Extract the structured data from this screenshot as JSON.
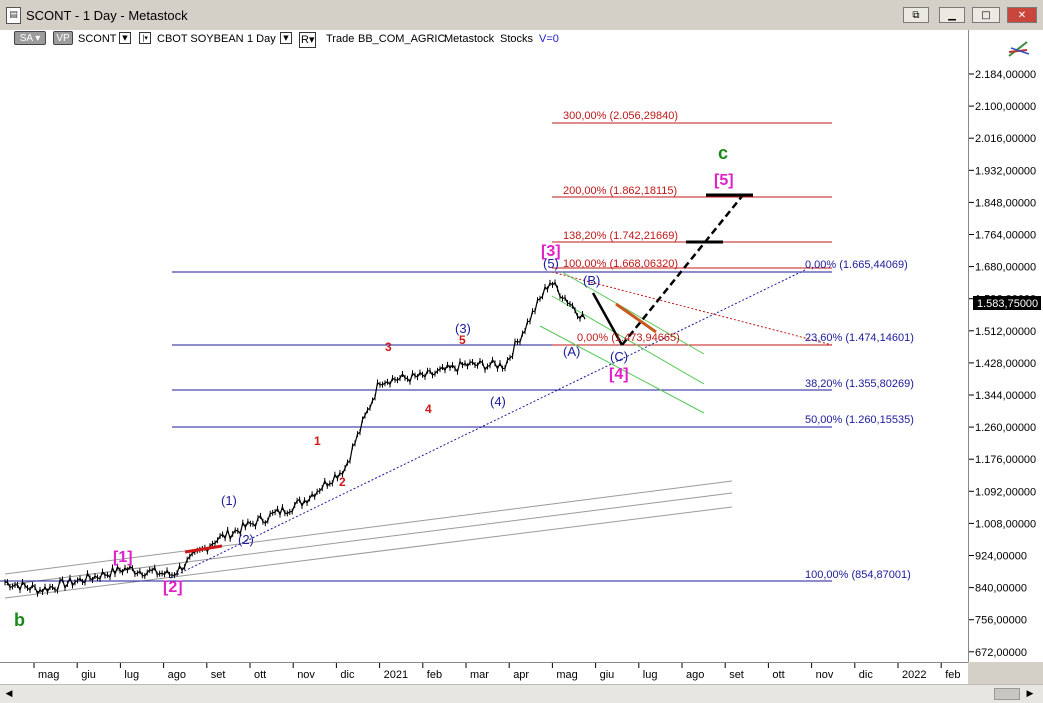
{
  "window": {
    "title": "SCONT - 1 Day - Metastock",
    "app_icon": "document-icon",
    "buttons": {
      "restore_all": "restore-windows-icon",
      "minimize": "minimize-icon",
      "maximize": "maximize-icon",
      "close": "close-icon"
    }
  },
  "toolbar": {
    "sa": "SA",
    "vp": "VP",
    "symbol": "SCONT",
    "instrument": "CBOT SOYBEAN",
    "period": "1 Day",
    "r_btn": "R",
    "trade": "Trade",
    "source": "BB_COM_AGRIC",
    "provider": "Metastock",
    "type": "Stocks",
    "v": "V=0"
  },
  "price_axis": {
    "ticks": [
      "2.184,00000",
      "2.100,00000",
      "2.016,00000",
      "1.932,00000",
      "1.848,00000",
      "1.764,00000",
      "1.680,00000",
      "1.596,00000",
      "1.512,00000",
      "1.428,00000",
      "1.344,00000",
      "1.260,00000",
      "1.176,00000",
      "1.092,00000",
      "1.008,00000",
      "924,00000",
      "840,00000",
      "756,00000",
      "672,00000"
    ],
    "last_price": "1.583,75000"
  },
  "time_axis": {
    "labels": [
      "mag",
      "giu",
      "lug",
      "ago",
      "set",
      "ott",
      "nov",
      "dic",
      "2021",
      "feb",
      "mar",
      "apr",
      "mag",
      "giu",
      "lug",
      "ago",
      "set",
      "ott",
      "nov",
      "dic",
      "2022",
      "feb"
    ]
  },
  "wave_labels": {
    "b": "b",
    "c": "c",
    "w1": "[1]",
    "w2": "[2]",
    "w3": "[3]",
    "w4": "[4]",
    "w5": "[5]",
    "i1": "(1)",
    "i2": "(2)",
    "i3": "(3)",
    "i4": "(4)",
    "i5": "(5)",
    "A": "(A)",
    "B": "(B)",
    "C": "(C)",
    "r1": "1",
    "r2": "2",
    "r3": "3",
    "r4": "4",
    "r5": "5"
  },
  "fib_retracement": {
    "l0": "0,00% (1.665,44069)",
    "l236": "23,60% (1.474,14601)",
    "l382": "38,20% (1.355,80269)",
    "l50": "50,00% (1.260,15535)",
    "l100": "100,00% (854,87001)"
  },
  "fib_extension": {
    "e300": "300,00% (2.056,29840)",
    "e200": "200,00% (1.862,18115)",
    "e138": "138,20% (1.742,21669)",
    "e100": "100,00% (1.668,06320)",
    "e0": "0,00% (1.473,94665)"
  },
  "colors": {
    "navy": "#1b1b9c",
    "magenta": "#e020c8",
    "red": "#d01818",
    "green": "#1a8a1a",
    "fib_red": "#c01818",
    "channel_green": "#56c856",
    "brown": "#c85a1e"
  },
  "chart_data": {
    "type": "line",
    "x": [
      "apr",
      "mag",
      "giu",
      "lug",
      "ago",
      "set",
      "ott",
      "nov",
      "dic",
      "2021",
      "feb",
      "mar",
      "apr",
      "mag",
      "giu"
    ],
    "series": [
      {
        "values": [
          850,
          830,
          855,
          885,
          870,
          960,
          1010,
          1060,
          1150,
          1380,
          1390,
          1420,
          1420,
          1640,
          1540
        ]
      }
    ],
    "ylim": [
      672,
      2184
    ]
  }
}
